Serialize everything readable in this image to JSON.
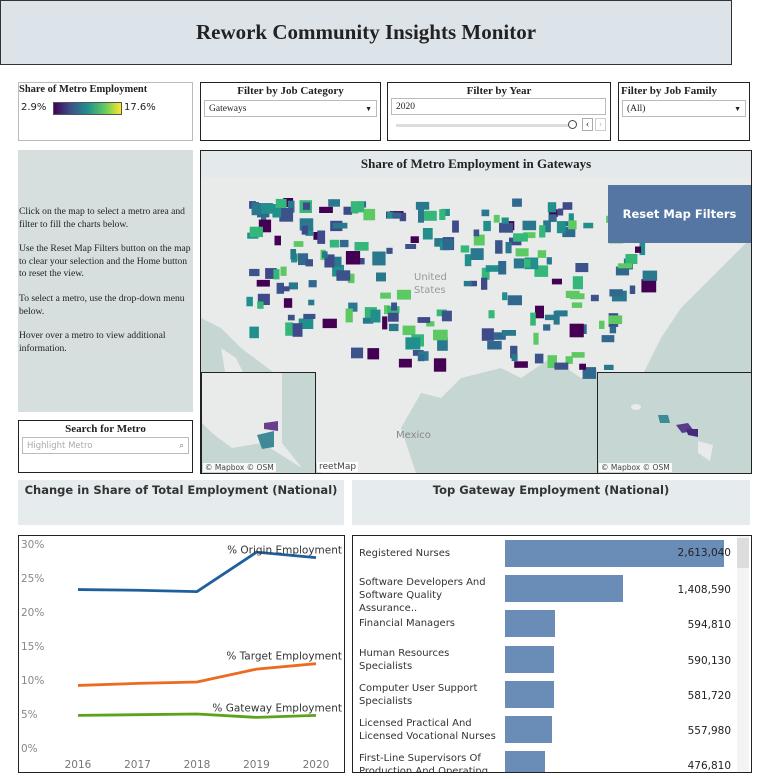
{
  "header": {
    "title": "Rework Community Insights Monitor"
  },
  "legend": {
    "title": "Share of Metro Employment",
    "min_label": "2.9%",
    "max_label": "17.6%",
    "gradient": [
      "#440154",
      "#3b528b",
      "#21908d",
      "#5dc963",
      "#fde725"
    ]
  },
  "filters": {
    "job_category": {
      "title": "Filter by Job Category",
      "value": "Gateways"
    },
    "year": {
      "title": "Filter by Year",
      "value": "2020",
      "slider_fraction": 1.0
    },
    "job_family": {
      "title": "Filter by Job Family",
      "value": "(All)"
    }
  },
  "instructions": [
    "Click on the map to select a metro area and filter to fill the charts below.",
    "Use the Reset Map Filters button on the map to clear your selection and the Home button to reset the view.",
    "To select a metro, use the drop-down menu below.",
    "Hover over a metro to view additional information."
  ],
  "search": {
    "title": "Search for Metro",
    "placeholder": "Highlight Metro"
  },
  "map": {
    "title": "Share of Metro Employment in Gateways",
    "reset_label": "Reset Map Filters",
    "labels": {
      "country_us": "United States",
      "country_mx": "Mexico"
    },
    "attribution": "© Mapbox  © OSM",
    "attribution_main": "reetMap"
  },
  "line_section": {
    "title": "Change in Share of Total Employment (National)"
  },
  "bar_section": {
    "title": "Top Gateway Employment (National)"
  },
  "chart_data": [
    {
      "type": "line",
      "x": [
        2016,
        2017,
        2018,
        2019,
        2020
      ],
      "yticks": [
        "0%",
        "5%",
        "10%",
        "15%",
        "20%",
        "25%",
        "30%"
      ],
      "ylim": [
        0,
        30
      ],
      "series": [
        {
          "name": "% Origin Employment",
          "color": "#1f5f9c",
          "values": [
            23.3,
            23.2,
            23.0,
            28.8,
            28.0
          ]
        },
        {
          "name": "% Target Employment",
          "color": "#ec6b1f",
          "values": [
            9.2,
            9.5,
            9.7,
            11.6,
            12.4
          ]
        },
        {
          "name": "% Gateway Employment",
          "color": "#5ea11d",
          "values": [
            4.8,
            4.9,
            5.0,
            4.5,
            4.8
          ]
        }
      ]
    },
    {
      "type": "bar",
      "orientation": "horizontal",
      "categories": [
        "Registered Nurses",
        "Software Developers And Software Quality Assurance..",
        "Financial Managers",
        "Human Resources Specialists",
        "Computer User Support Specialists",
        "Licensed Practical And Licensed Vocational Nurses",
        "First-Line Supervisors Of Production And Operating"
      ],
      "values": [
        2613040,
        1408590,
        594810,
        590130,
        581720,
        557980,
        476810
      ],
      "value_labels": [
        "2,613,040",
        "1,408,590",
        "594,810",
        "590,130",
        "581,720",
        "557,980",
        "476,810"
      ],
      "color": "#6a8db8"
    }
  ]
}
